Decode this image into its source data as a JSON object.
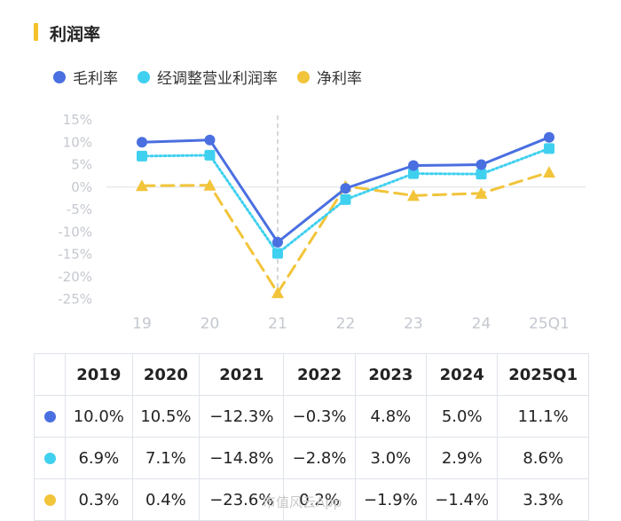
{
  "title": "利润率",
  "colors": {
    "accent": "#f4c22b",
    "series1": "#4a6fe0",
    "series2": "#3fd0ef",
    "series3": "#f2c43a"
  },
  "chart_data": {
    "type": "line",
    "categories": [
      "19",
      "20",
      "21",
      "22",
      "23",
      "24",
      "25Q1"
    ],
    "yticks": [
      "15%",
      "10%",
      "5%",
      "0%",
      "-5%",
      "-10%",
      "-15%",
      "-20%",
      "-25%"
    ],
    "ylim": [
      -25,
      15
    ],
    "series": [
      {
        "name": "毛利率",
        "marker": "circle",
        "style": "solid",
        "color": "#4a6fe0",
        "values": [
          10.0,
          10.5,
          -12.3,
          -0.3,
          4.8,
          5.0,
          11.1
        ]
      },
      {
        "name": "经调整营业利润率",
        "marker": "square",
        "style": "dotted",
        "color": "#3fd0ef",
        "values": [
          6.9,
          7.1,
          -14.8,
          -2.8,
          3.0,
          2.9,
          8.6
        ]
      },
      {
        "name": "净利率",
        "marker": "triangle",
        "style": "dashed",
        "color": "#f2c43a",
        "values": [
          0.3,
          0.4,
          -23.6,
          0.2,
          -1.9,
          -1.4,
          3.3
        ]
      }
    ],
    "vertical_marker_category": "21"
  },
  "table": {
    "headers": [
      "2019",
      "2020",
      "2021",
      "2022",
      "2023",
      "2024",
      "2025Q1"
    ],
    "rows": [
      [
        "10.0%",
        "10.5%",
        "−12.3%",
        "−0.3%",
        "4.8%",
        "5.0%",
        "11.1%"
      ],
      [
        "6.9%",
        "7.1%",
        "−14.8%",
        "−2.8%",
        "3.0%",
        "2.9%",
        "8.6%"
      ],
      [
        "0.3%",
        "0.4%",
        "−23.6%",
        "0.2%",
        "−1.9%",
        "−1.4%",
        "3.3%"
      ]
    ]
  },
  "watermark": "市值风云App"
}
